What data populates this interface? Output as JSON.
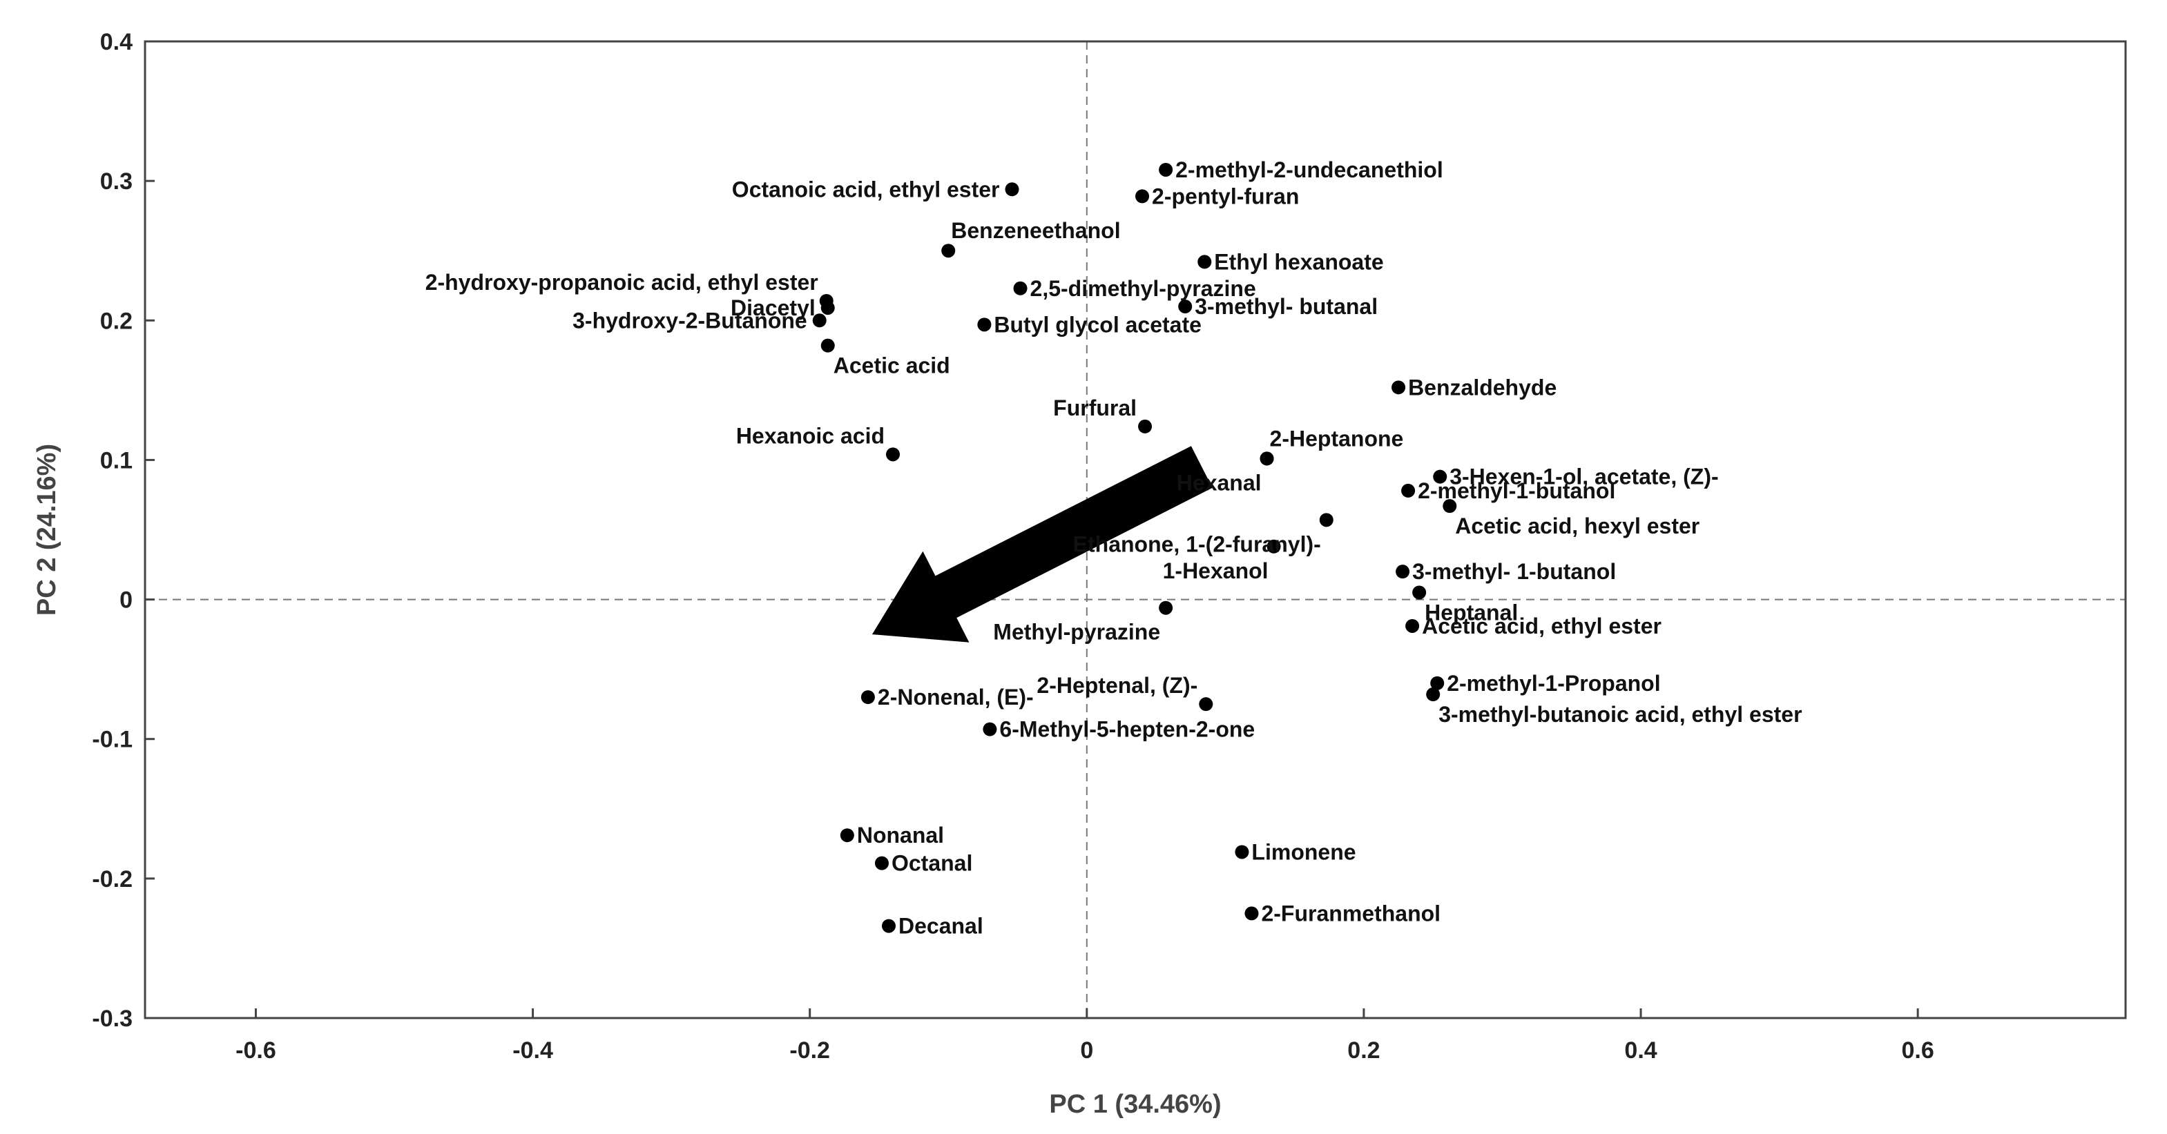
{
  "chart_data": {
    "type": "scatter",
    "title": "",
    "xlabel": "PC 1 (34.46%)",
    "ylabel": "PC 2 (24.16%)",
    "xlim": [
      -0.68,
      0.75
    ],
    "ylim": [
      -0.3,
      0.4
    ],
    "xticks": [
      -0.6,
      -0.4,
      -0.2,
      0,
      0.2,
      0.4,
      0.6
    ],
    "xtick_labels": [
      "-0.6",
      "-0.4",
      "-0.2",
      "0",
      "0.2",
      "0.4",
      "0.6"
    ],
    "yticks": [
      0.4,
      0.3,
      0.2,
      0.1,
      0,
      -0.1,
      -0.2,
      -0.3
    ],
    "ytick_labels": [
      "0.4",
      "0.3",
      "0.2",
      "0.1",
      "0",
      "-0.1",
      "-0.2",
      "-0.3"
    ],
    "reference_lines": {
      "x": 0,
      "y": 0,
      "style": "dashed"
    },
    "arrow": {
      "from": [
        0.083,
        0.095
      ],
      "to": [
        -0.155,
        -0.025
      ],
      "color": "#000000"
    },
    "marker_color": "#000000",
    "points": [
      {
        "name": "Octanoic acid, ethyl ester",
        "x": -0.054,
        "y": 0.294,
        "label_pos": "left"
      },
      {
        "name": "2-methyl-2-undecanethiol",
        "x": 0.057,
        "y": 0.308,
        "label_pos": "right"
      },
      {
        "name": "2-pentyl-furan",
        "x": 0.04,
        "y": 0.289,
        "label_pos": "right"
      },
      {
        "name": "Benzeneethanol",
        "x": -0.1,
        "y": 0.25,
        "label_pos": "above-right"
      },
      {
        "name": "Ethyl hexanoate",
        "x": 0.085,
        "y": 0.242,
        "label_pos": "right"
      },
      {
        "name": "2-hydroxy-propanoic acid, ethyl ester",
        "x": -0.188,
        "y": 0.214,
        "label_pos": "above-left"
      },
      {
        "name": "2,5-dimethyl-pyrazine",
        "x": -0.048,
        "y": 0.223,
        "label_pos": "right"
      },
      {
        "name": "Diacetyl",
        "x": -0.187,
        "y": 0.209,
        "label_pos": "left"
      },
      {
        "name": "3-methyl- butanal",
        "x": 0.071,
        "y": 0.21,
        "label_pos": "right"
      },
      {
        "name": "3-hydroxy-2-Butanone",
        "x": -0.193,
        "y": 0.2,
        "label_pos": "left"
      },
      {
        "name": "Butyl glycol acetate",
        "x": -0.074,
        "y": 0.197,
        "label_pos": "right"
      },
      {
        "name": "Acetic acid",
        "x": -0.187,
        "y": 0.182,
        "label_pos": "below-right"
      },
      {
        "name": "Benzaldehyde",
        "x": 0.225,
        "y": 0.152,
        "label_pos": "right"
      },
      {
        "name": "Furfural",
        "x": 0.042,
        "y": 0.124,
        "label_pos": "above-left"
      },
      {
        "name": "Hexanoic acid",
        "x": -0.14,
        "y": 0.104,
        "label_pos": "above-left"
      },
      {
        "name": "2-Heptanone",
        "x": 0.13,
        "y": 0.101,
        "label_pos": "above-right"
      },
      {
        "name": "Hexanal",
        "x": 0.13,
        "y": 0.101,
        "label_pos": "below-left"
      },
      {
        "name": "3-Hexen-1-ol, acetate, (Z)-",
        "x": 0.255,
        "y": 0.088,
        "label_pos": "right"
      },
      {
        "name": "2-methyl-1-butanol",
        "x": 0.232,
        "y": 0.078,
        "label_pos": "right"
      },
      {
        "name": "Acetic acid, hexyl ester",
        "x": 0.262,
        "y": 0.067,
        "label_pos": "below-right"
      },
      {
        "name": "Ethanone, 1-(2-furanyl)-",
        "x": 0.173,
        "y": 0.057,
        "label_pos": "below-left"
      },
      {
        "name": "1-Hexanol",
        "x": 0.135,
        "y": 0.038,
        "label_pos": "below-left"
      },
      {
        "name": "3-methyl- 1-butanol",
        "x": 0.228,
        "y": 0.02,
        "label_pos": "right"
      },
      {
        "name": "Heptanal",
        "x": 0.24,
        "y": 0.005,
        "label_pos": "below-right"
      },
      {
        "name": "Methyl-pyrazine",
        "x": 0.057,
        "y": -0.006,
        "label_pos": "below-left"
      },
      {
        "name": "Acetic acid, ethyl ester",
        "x": 0.235,
        "y": -0.019,
        "label_pos": "right"
      },
      {
        "name": "2-methyl-1-Propanol",
        "x": 0.253,
        "y": -0.06,
        "label_pos": "right"
      },
      {
        "name": "2-Heptenal, (Z)-",
        "x": 0.086,
        "y": -0.075,
        "label_pos": "above-left"
      },
      {
        "name": "3-methyl-butanoic acid, ethyl ester",
        "x": 0.25,
        "y": -0.068,
        "label_pos": "below-right"
      },
      {
        "name": "2-Nonenal, (E)-",
        "x": -0.158,
        "y": -0.07,
        "label_pos": "right"
      },
      {
        "name": "6-Methyl-5-hepten-2-one",
        "x": -0.07,
        "y": -0.093,
        "label_pos": "right"
      },
      {
        "name": "Nonanal",
        "x": -0.173,
        "y": -0.169,
        "label_pos": "right"
      },
      {
        "name": "Limonene",
        "x": 0.112,
        "y": -0.181,
        "label_pos": "right"
      },
      {
        "name": "Octanal",
        "x": -0.148,
        "y": -0.189,
        "label_pos": "right"
      },
      {
        "name": "2-Furanmethanol",
        "x": 0.119,
        "y": -0.225,
        "label_pos": "right"
      },
      {
        "name": "Decanal",
        "x": -0.143,
        "y": -0.234,
        "label_pos": "right"
      }
    ]
  }
}
